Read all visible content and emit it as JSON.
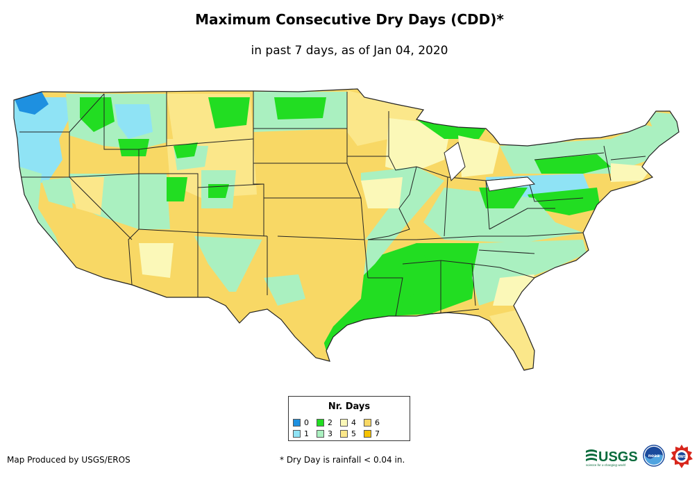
{
  "header": {
    "title": "Maximum Consecutive Dry Days (CDD)*",
    "subtitle": "in past 7 days, as of Jan 04, 2020"
  },
  "legend": {
    "title": "Nr. Days",
    "items": [
      {
        "label": "0",
        "color": "#1e90e0"
      },
      {
        "label": "1",
        "color": "#8fe3f5"
      },
      {
        "label": "2",
        "color": "#22dd22"
      },
      {
        "label": "3",
        "color": "#aaf0c0"
      },
      {
        "label": "4",
        "color": "#fbf8b8"
      },
      {
        "label": "5",
        "color": "#fbe78a"
      },
      {
        "label": "6",
        "color": "#f8d865"
      },
      {
        "label": "7",
        "color": "#f5c200"
      }
    ]
  },
  "footer": {
    "credit": "Map Produced by USGS/EROS",
    "footnote": "* Dry Day is rainfall < 0.04 in."
  },
  "logos": {
    "usgs": "USGS",
    "usgs_tagline": "science for a changing world",
    "noaa": "noaa",
    "nws": "NWS"
  },
  "colors": {
    "state_border": "#222222",
    "map_background": "#ffffff"
  }
}
